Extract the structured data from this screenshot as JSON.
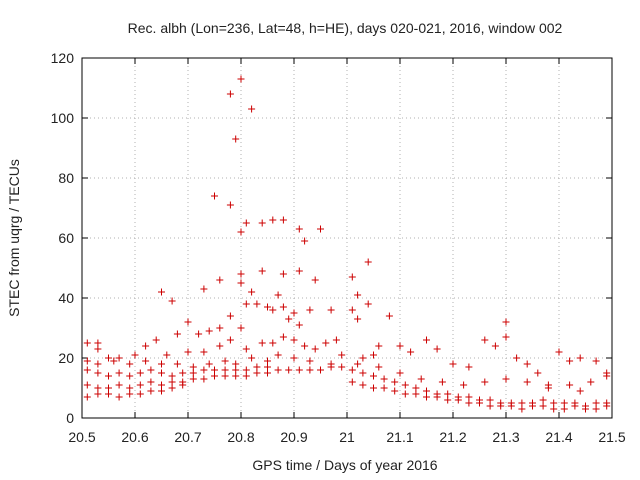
{
  "chart_data": {
    "type": "scatter",
    "title": "Rec. albh (Lon=236, Lat=48, h=HE), days 020-021, 2016, window 002",
    "xlabel": "GPS time / Days of year 2016",
    "ylabel": "STEC from uqrg / TECUs",
    "xlim": [
      20.5,
      21.5
    ],
    "ylim": [
      0,
      120
    ],
    "xticks": [
      "20.5",
      "20.6",
      "20.7",
      "20.8",
      "20.9",
      "21",
      "21.1",
      "21.2",
      "21.3",
      "21.4",
      "21.5"
    ],
    "yticks": [
      "0",
      "20",
      "40",
      "60",
      "80",
      "100",
      "120"
    ],
    "marker": "+",
    "color": "#cc0000",
    "grid": "dotted",
    "series": [
      {
        "points": [
          [
            20.78,
            108
          ],
          [
            20.8,
            113
          ],
          [
            20.82,
            103
          ],
          [
            20.79,
            93
          ],
          [
            20.75,
            74
          ],
          [
            20.78,
            71
          ],
          [
            20.86,
            66
          ],
          [
            20.88,
            66
          ],
          [
            20.84,
            65
          ],
          [
            20.81,
            65
          ],
          [
            20.8,
            62
          ],
          [
            20.91,
            63
          ],
          [
            20.95,
            63
          ],
          [
            20.92,
            59
          ],
          [
            20.91,
            49
          ],
          [
            20.84,
            49
          ],
          [
            20.88,
            48
          ],
          [
            20.8,
            48
          ],
          [
            20.94,
            46
          ],
          [
            20.8,
            45
          ],
          [
            20.76,
            46
          ],
          [
            20.73,
            43
          ],
          [
            20.82,
            42
          ],
          [
            20.87,
            41
          ],
          [
            20.65,
            42
          ],
          [
            20.81,
            38
          ],
          [
            20.83,
            38
          ],
          [
            20.85,
            37
          ],
          [
            20.86,
            36
          ],
          [
            20.88,
            37
          ],
          [
            20.9,
            35
          ],
          [
            20.93,
            36
          ],
          [
            20.97,
            36
          ],
          [
            20.89,
            33
          ],
          [
            20.91,
            31
          ],
          [
            20.7,
            32
          ],
          [
            20.67,
            39
          ],
          [
            20.78,
            34
          ],
          [
            20.76,
            30
          ],
          [
            20.8,
            30
          ],
          [
            20.72,
            28
          ],
          [
            20.74,
            29
          ],
          [
            20.68,
            28
          ],
          [
            20.64,
            26
          ],
          [
            20.62,
            24
          ],
          [
            20.66,
            21
          ],
          [
            20.7,
            22
          ],
          [
            20.73,
            22
          ],
          [
            20.76,
            24
          ],
          [
            20.78,
            26
          ],
          [
            20.81,
            23
          ],
          [
            20.84,
            25
          ],
          [
            20.86,
            25
          ],
          [
            20.88,
            27
          ],
          [
            20.9,
            26
          ],
          [
            20.92,
            24
          ],
          [
            20.94,
            23
          ],
          [
            20.96,
            25
          ],
          [
            20.98,
            26
          ],
          [
            20.99,
            21
          ],
          [
            20.93,
            19
          ],
          [
            20.97,
            18
          ],
          [
            20.9,
            20
          ],
          [
            20.87,
            21
          ],
          [
            20.85,
            19
          ],
          [
            20.82,
            20
          ],
          [
            20.79,
            18
          ],
          [
            20.77,
            19
          ],
          [
            20.74,
            18
          ],
          [
            20.71,
            17
          ],
          [
            20.68,
            18
          ],
          [
            20.65,
            18
          ],
          [
            20.62,
            19
          ],
          [
            20.59,
            18
          ],
          [
            20.56,
            19
          ],
          [
            20.53,
            18
          ],
          [
            20.51,
            19
          ],
          [
            20.51,
            25
          ],
          [
            20.53,
            25
          ],
          [
            20.53,
            23
          ],
          [
            20.55,
            20
          ],
          [
            20.57,
            20
          ],
          [
            20.6,
            21
          ],
          [
            20.51,
            16
          ],
          [
            20.53,
            15
          ],
          [
            20.55,
            14
          ],
          [
            20.57,
            15
          ],
          [
            20.59,
            14
          ],
          [
            20.61,
            15
          ],
          [
            20.63,
            16
          ],
          [
            20.65,
            15
          ],
          [
            20.67,
            14
          ],
          [
            20.69,
            15
          ],
          [
            20.71,
            15
          ],
          [
            20.73,
            16
          ],
          [
            20.75,
            16
          ],
          [
            20.77,
            16
          ],
          [
            20.79,
            16
          ],
          [
            20.81,
            16
          ],
          [
            20.83,
            17
          ],
          [
            20.85,
            17
          ],
          [
            20.87,
            16
          ],
          [
            20.89,
            16
          ],
          [
            20.91,
            16
          ],
          [
            20.93,
            16
          ],
          [
            20.95,
            16
          ],
          [
            20.97,
            17
          ],
          [
            20.99,
            17
          ],
          [
            20.51,
            11
          ],
          [
            20.53,
            10
          ],
          [
            20.55,
            10
          ],
          [
            20.57,
            11
          ],
          [
            20.59,
            10
          ],
          [
            20.61,
            11
          ],
          [
            20.63,
            12
          ],
          [
            20.65,
            11
          ],
          [
            20.67,
            12
          ],
          [
            20.69,
            12
          ],
          [
            20.71,
            13
          ],
          [
            20.73,
            13
          ],
          [
            20.75,
            14
          ],
          [
            20.77,
            14
          ],
          [
            20.79,
            14
          ],
          [
            20.81,
            14
          ],
          [
            20.83,
            15
          ],
          [
            20.85,
            15
          ],
          [
            20.51,
            7
          ],
          [
            20.53,
            8
          ],
          [
            20.55,
            8
          ],
          [
            20.57,
            7
          ],
          [
            20.59,
            8
          ],
          [
            20.61,
            8
          ],
          [
            20.63,
            9
          ],
          [
            20.65,
            9
          ],
          [
            20.67,
            10
          ],
          [
            20.69,
            11
          ],
          [
            21.01,
            47
          ],
          [
            21.02,
            41
          ],
          [
            21.04,
            52
          ],
          [
            21.04,
            38
          ],
          [
            21.01,
            36
          ],
          [
            21.02,
            33
          ],
          [
            21.06,
            24
          ],
          [
            21.08,
            34
          ],
          [
            21.1,
            24
          ],
          [
            21.12,
            22
          ],
          [
            21.03,
            20
          ],
          [
            21.05,
            21
          ],
          [
            21.01,
            16
          ],
          [
            21.03,
            15
          ],
          [
            21.05,
            14
          ],
          [
            21.07,
            13
          ],
          [
            21.09,
            12
          ],
          [
            21.11,
            11
          ],
          [
            21.13,
            10
          ],
          [
            21.15,
            9
          ],
          [
            21.17,
            8
          ],
          [
            21.19,
            8
          ],
          [
            21.21,
            7
          ],
          [
            21.23,
            7
          ],
          [
            21.25,
            6
          ],
          [
            21.27,
            6
          ],
          [
            21.29,
            5
          ],
          [
            21.31,
            5
          ],
          [
            21.33,
            5
          ],
          [
            21.35,
            5
          ],
          [
            21.37,
            6
          ],
          [
            21.39,
            5
          ],
          [
            21.41,
            5
          ],
          [
            21.43,
            5
          ],
          [
            21.45,
            4
          ],
          [
            21.47,
            5
          ],
          [
            21.49,
            5
          ],
          [
            21.01,
            12
          ],
          [
            21.03,
            11
          ],
          [
            21.05,
            10
          ],
          [
            21.07,
            10
          ],
          [
            21.09,
            9
          ],
          [
            21.11,
            8
          ],
          [
            21.13,
            8
          ],
          [
            21.15,
            7
          ],
          [
            21.17,
            7
          ],
          [
            21.19,
            6
          ],
          [
            21.21,
            6
          ],
          [
            21.23,
            5
          ],
          [
            21.25,
            5
          ],
          [
            21.27,
            4
          ],
          [
            21.29,
            4
          ],
          [
            21.31,
            4
          ],
          [
            21.33,
            3
          ],
          [
            21.35,
            4
          ],
          [
            21.37,
            4
          ],
          [
            21.39,
            3
          ],
          [
            21.41,
            3
          ],
          [
            21.43,
            4
          ],
          [
            21.45,
            3
          ],
          [
            21.47,
            3
          ],
          [
            21.49,
            4
          ],
          [
            21.02,
            18
          ],
          [
            21.06,
            17
          ],
          [
            21.1,
            15
          ],
          [
            21.14,
            13
          ],
          [
            21.18,
            12
          ],
          [
            21.22,
            11
          ],
          [
            21.26,
            12
          ],
          [
            21.3,
            13
          ],
          [
            21.34,
            12
          ],
          [
            21.38,
            11
          ],
          [
            21.42,
            11
          ],
          [
            21.46,
            12
          ],
          [
            21.49,
            14
          ],
          [
            21.15,
            26
          ],
          [
            21.17,
            23
          ],
          [
            21.2,
            18
          ],
          [
            21.23,
            17
          ],
          [
            21.26,
            26
          ],
          [
            21.28,
            24
          ],
          [
            21.3,
            32
          ],
          [
            21.3,
            27
          ],
          [
            21.32,
            20
          ],
          [
            21.34,
            18
          ],
          [
            21.36,
            15
          ],
          [
            21.4,
            22
          ],
          [
            21.42,
            19
          ],
          [
            21.44,
            20
          ],
          [
            21.47,
            19
          ],
          [
            21.49,
            15
          ],
          [
            21.38,
            10
          ],
          [
            21.44,
            9
          ]
        ]
      }
    ]
  }
}
